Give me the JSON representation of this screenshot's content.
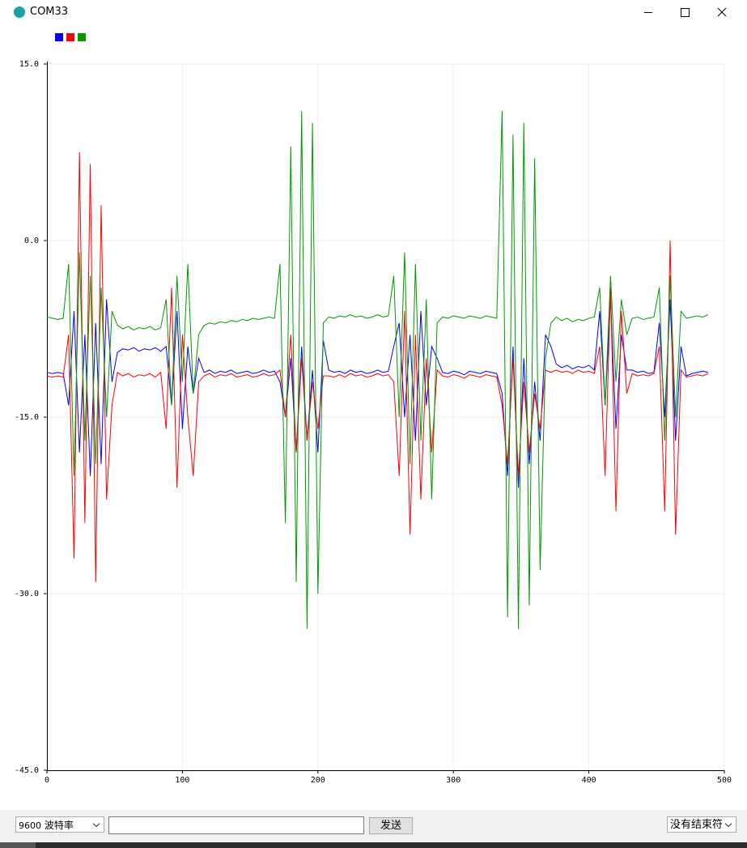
{
  "window": {
    "title": "COM33"
  },
  "toolbar": {
    "baud": "9600",
    "baud_label": "波特率",
    "send_button": "发送",
    "line_ending": "没有结束符"
  },
  "chart_data": {
    "type": "line",
    "xlim": [
      0,
      500
    ],
    "ylim": [
      -45,
      15
    ],
    "xticks": [
      0,
      100,
      200,
      300,
      400,
      500
    ],
    "yticks": [
      {
        "value": 15,
        "label": "15.0"
      },
      {
        "value": 0,
        "label": "0.0"
      },
      {
        "value": -15,
        "label": "-15.0"
      },
      {
        "value": -30,
        "label": "-30.0"
      },
      {
        "value": -45,
        "label": "-45.0"
      }
    ],
    "grid": true,
    "x": [
      0,
      4,
      8,
      12,
      16,
      20,
      24,
      28,
      32,
      36,
      40,
      44,
      48,
      52,
      56,
      60,
      64,
      68,
      72,
      76,
      80,
      84,
      88,
      92,
      96,
      100,
      104,
      108,
      112,
      116,
      120,
      124,
      128,
      132,
      136,
      140,
      144,
      148,
      152,
      156,
      160,
      164,
      168,
      172,
      176,
      180,
      184,
      188,
      192,
      196,
      200,
      204,
      208,
      212,
      216,
      220,
      224,
      228,
      232,
      236,
      240,
      244,
      248,
      252,
      256,
      260,
      264,
      268,
      272,
      276,
      280,
      284,
      288,
      292,
      296,
      300,
      304,
      308,
      312,
      316,
      320,
      324,
      328,
      332,
      336,
      340,
      344,
      348,
      352,
      356,
      360,
      364,
      368,
      372,
      376,
      380,
      384,
      388,
      392,
      396,
      400,
      404,
      408,
      412,
      416,
      420,
      424,
      428,
      432,
      436,
      440,
      444,
      448,
      452,
      456,
      460,
      464,
      468,
      472,
      476,
      480,
      484,
      488
    ],
    "series": [
      {
        "color": "#0000ff",
        "values": [
          -11.2,
          -11.3,
          -11.2,
          -11.3,
          -14,
          -6,
          -18,
          -8,
          -20,
          -7,
          -19,
          -5,
          -12,
          -9.5,
          -9.2,
          -9.3,
          -9.1,
          -9.4,
          -9.2,
          -9.3,
          -9.1,
          -9.4,
          -9,
          -14,
          -6,
          -16,
          -9,
          -13,
          -10,
          -11.2,
          -11.0,
          -11.3,
          -11.1,
          -11.2,
          -11.0,
          -11.3,
          -11.2,
          -11.1,
          -11.3,
          -11.2,
          -11.0,
          -11.2,
          -11.1,
          -12,
          -15,
          -10,
          -18,
          -9,
          -17,
          -11,
          -18,
          -8.5,
          -11,
          -11.2,
          -11.1,
          -11.3,
          -11.0,
          -11.2,
          -11.1,
          -11.3,
          -11.2,
          -11.0,
          -11.2,
          -11.1,
          -9,
          -7,
          -15,
          -8,
          -17,
          -6,
          -14,
          -9,
          -10,
          -11.2,
          -11.3,
          -11.1,
          -11.2,
          -11.4,
          -11.1,
          -11.2,
          -11.3,
          -11.1,
          -11.2,
          -11.3,
          -13,
          -20,
          -9,
          -21,
          -10,
          -19,
          -12,
          -17,
          -8,
          -9,
          -10.5,
          -10.8,
          -10.6,
          -10.9,
          -10.7,
          -10.8,
          -10.6,
          -11,
          -6,
          -14,
          -5,
          -16,
          -8,
          -11,
          -11,
          -11.2,
          -11.1,
          -11.3,
          -11.2,
          -7,
          -15,
          -5,
          -17,
          -9,
          -11.5,
          -11.3,
          -11.2,
          -11.1,
          -11.2
        ]
      },
      {
        "color": "#ff0000",
        "values": [
          -11.5,
          -11.6,
          -11.5,
          -11.6,
          -8,
          -27,
          7.5,
          -24,
          6.5,
          -29,
          3,
          -22,
          -14,
          -11.2,
          -11.5,
          -11.3,
          -11.6,
          -11.4,
          -11.5,
          -11.3,
          -11.6,
          -11.2,
          -16,
          -4,
          -21,
          -8,
          -15,
          -20,
          -12,
          -11.5,
          -11.3,
          -11.6,
          -11.4,
          -11.5,
          -11.3,
          -11.6,
          -11.5,
          -11.4,
          -11.6,
          -11.5,
          -11.3,
          -11.5,
          -11.4,
          -11,
          -15,
          -8,
          -18,
          -10,
          -17,
          -12,
          -16,
          -11.5,
          -11.5,
          -11.6,
          -11.4,
          -11.6,
          -11.3,
          -11.5,
          -11.4,
          -11.6,
          -11.5,
          -11.3,
          -11.5,
          -11.4,
          -12,
          -20,
          -6,
          -25,
          -8,
          -22,
          -10,
          -18,
          -11,
          -11.5,
          -11.6,
          -11.4,
          -11.5,
          -11.7,
          -11.4,
          -11.5,
          -11.6,
          -11.4,
          -11.5,
          -11.6,
          -14,
          -19,
          -10,
          -20,
          -12,
          -18,
          -13,
          -16,
          -11,
          -11.2,
          -11,
          -11.2,
          -11.1,
          -11.3,
          -11.0,
          -11.2,
          -11.1,
          -11.3,
          -9,
          -20,
          -4,
          -23,
          -6,
          -13,
          -11.3,
          -11.5,
          -11.4,
          -11.5,
          -11.3,
          -9,
          -23,
          0,
          -25,
          -11,
          -11.6,
          -11.5,
          -11.4,
          -11.5,
          -11.3
        ]
      },
      {
        "color": "#009900",
        "values": [
          -6.5,
          -6.6,
          -6.7,
          -6.6,
          -2,
          -20,
          -1,
          -17,
          -3,
          -19,
          -4,
          -15,
          -6,
          -7.2,
          -7.5,
          -7.3,
          -7.6,
          -7.4,
          -7.5,
          -7.3,
          -7.6,
          -7.4,
          -5,
          -14,
          -3,
          -12,
          -2,
          -13,
          -8,
          -7.2,
          -7.0,
          -7.1,
          -6.9,
          -7.0,
          -6.8,
          -6.9,
          -6.7,
          -6.8,
          -6.6,
          -6.7,
          -6.6,
          -6.5,
          -6.6,
          -2,
          -24,
          8,
          -29,
          11,
          -33,
          10,
          -30,
          -7,
          -6.5,
          -6.6,
          -6.4,
          -6.5,
          -6.3,
          -6.5,
          -6.4,
          -6.6,
          -6.5,
          -6.3,
          -6.5,
          -6.4,
          -3,
          -15,
          -1,
          -19,
          -2,
          -17,
          -5,
          -22,
          -7,
          -6.5,
          -6.6,
          -6.4,
          -6.5,
          -6.6,
          -6.4,
          -6.5,
          -6.6,
          -6.4,
          -6.5,
          -6.6,
          11,
          -32,
          9,
          -33,
          10,
          -31,
          7,
          -28,
          -10,
          -7,
          -6.5,
          -6.8,
          -6.6,
          -6.9,
          -6.7,
          -6.8,
          -6.6,
          -6.5,
          -4,
          -14,
          -3,
          -12,
          -5,
          -8,
          -6.6,
          -6.5,
          -6.7,
          -6.6,
          -6.5,
          -4,
          -17,
          -3,
          -15,
          -6,
          -6.6,
          -6.5,
          -6.4,
          -6.5,
          -6.3
        ]
      }
    ]
  }
}
